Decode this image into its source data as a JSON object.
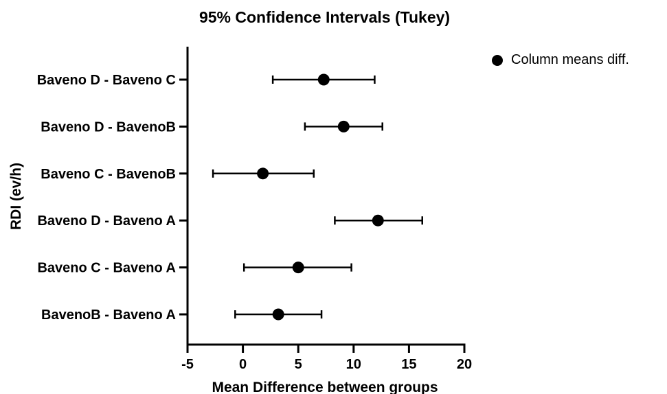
{
  "chart_data": {
    "type": "scatter",
    "title": "95% Confidence Intervals (Tukey)",
    "xlabel": "Mean Difference between groups",
    "ylabel": "RDI (ev/h)",
    "xlim": [
      -5,
      20
    ],
    "xticks": [
      -5,
      0,
      5,
      10,
      15,
      20
    ],
    "grid": false,
    "legend_position": "top-right",
    "categories": [
      "Baveno D - Baveno C",
      "Baveno D - BavenoB",
      "Baveno C - BavenoB",
      "Baveno D - Baveno A",
      "Baveno C - Baveno A",
      "BavenoB - Baveno A"
    ],
    "series": [
      {
        "name": "Column means diff.",
        "color": "#000000",
        "values": [
          7.3,
          9.1,
          1.8,
          12.2,
          5.0,
          3.2
        ],
        "lower": [
          2.7,
          5.6,
          -2.7,
          8.3,
          0.1,
          -0.7
        ],
        "upper": [
          11.9,
          12.6,
          6.4,
          16.2,
          9.8,
          7.1
        ]
      }
    ]
  }
}
